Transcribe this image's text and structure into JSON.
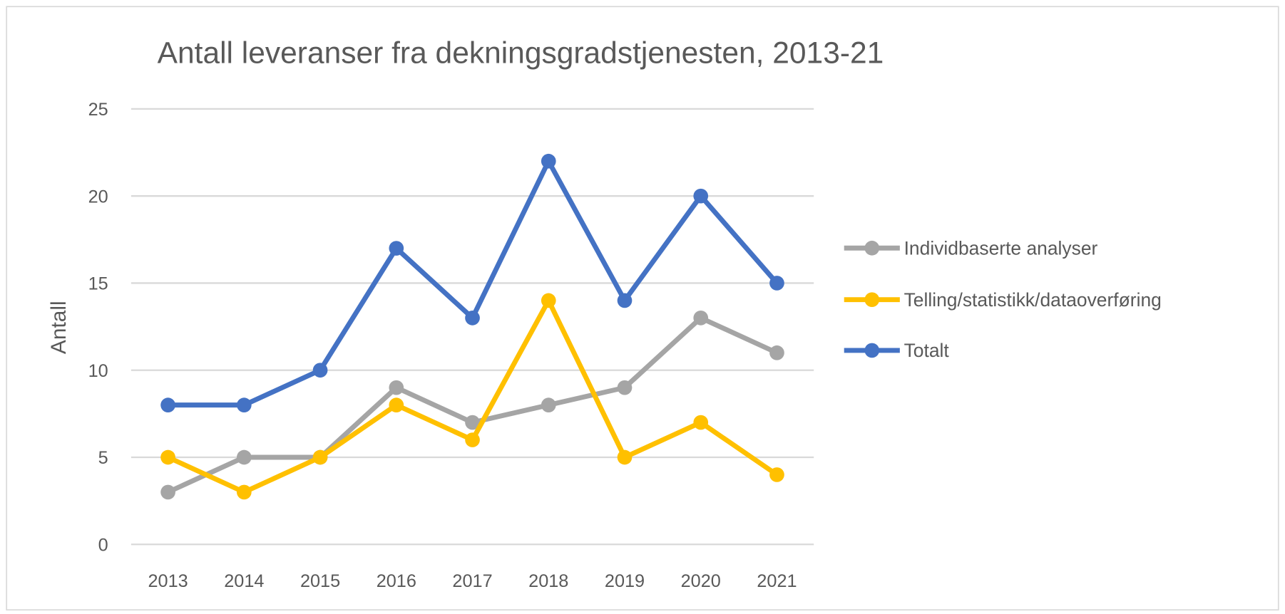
{
  "chart_data": {
    "type": "line",
    "title": "Antall leveranser fra dekningsgradstjenesten, 2013-21",
    "xlabel": "",
    "ylabel": "Antall",
    "ylim": [
      0,
      25
    ],
    "yticks": [
      "0",
      "5",
      "10",
      "15",
      "20",
      "25"
    ],
    "categories": [
      "2013",
      "2014",
      "2015",
      "2016",
      "2017",
      "2018",
      "2019",
      "2020",
      "2021"
    ],
    "grid": true,
    "legend_position": "right",
    "series": [
      {
        "name": "Individbaserte analyser",
        "color": "#A5A5A5",
        "values": [
          3,
          5,
          5,
          9,
          7,
          8,
          9,
          13,
          11
        ]
      },
      {
        "name": "Telling/statistikk/dataoverføring",
        "color": "#FFC000",
        "values": [
          5,
          3,
          5,
          8,
          6,
          14,
          5,
          7,
          4
        ]
      },
      {
        "name": "Totalt",
        "color": "#4472C4",
        "values": [
          8,
          8,
          10,
          17,
          13,
          22,
          14,
          20,
          15
        ]
      }
    ]
  }
}
